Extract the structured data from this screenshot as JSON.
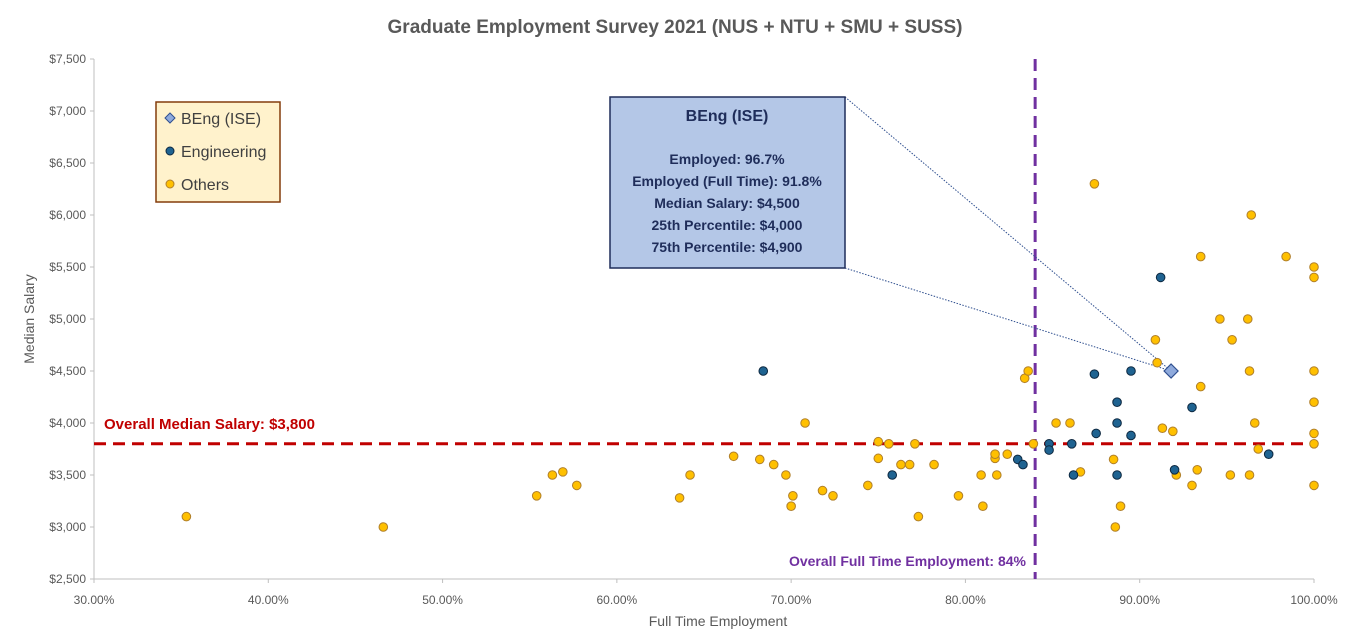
{
  "chart_data": {
    "type": "scatter",
    "title": "Graduate Employment Survey 2021 (NUS + NTU + SMU + SUSS)",
    "xlabel": "Full Time Employment",
    "ylabel": "Median Salary",
    "xlim": [
      0.3,
      1.0
    ],
    "ylim": [
      2500,
      7500
    ],
    "x_ticks": [
      0.3,
      0.4,
      0.5,
      0.6,
      0.7,
      0.8,
      0.9,
      1.0
    ],
    "x_tick_labels": [
      "30.00%",
      "40.00%",
      "50.00%",
      "60.00%",
      "70.00%",
      "80.00%",
      "90.00%",
      "100.00%"
    ],
    "y_ticks": [
      2500,
      3000,
      3500,
      4000,
      4500,
      5000,
      5500,
      6000,
      6500,
      7000,
      7500
    ],
    "y_tick_labels": [
      "$2,500",
      "$3,000",
      "$3,500",
      "$4,000",
      "$4,500",
      "$5,000",
      "$5,500",
      "$6,000",
      "$6,500",
      "$7,000",
      "$7,500"
    ],
    "grid": false,
    "legend": {
      "position": "top-left",
      "entries": [
        "BEng (ISE)",
        "Engineering",
        "Others"
      ]
    },
    "series": [
      {
        "name": "BEng (ISE)",
        "marker": "diamond",
        "color": "#8faadc",
        "points": [
          [
            0.918,
            4500
          ]
        ]
      },
      {
        "name": "Engineering",
        "marker": "circle",
        "color": "#1f6391",
        "points": [
          [
            0.684,
            4500
          ],
          [
            0.758,
            3500
          ],
          [
            0.83,
            3650
          ],
          [
            0.833,
            3600
          ],
          [
            0.848,
            3800
          ],
          [
            0.848,
            3740
          ],
          [
            0.861,
            3800
          ],
          [
            0.862,
            3500
          ],
          [
            0.874,
            4470
          ],
          [
            0.875,
            3900
          ],
          [
            0.887,
            4200
          ],
          [
            0.887,
            4000
          ],
          [
            0.887,
            3500
          ],
          [
            0.895,
            4500
          ],
          [
            0.895,
            3880
          ],
          [
            0.912,
            5400
          ],
          [
            0.92,
            3550
          ],
          [
            0.93,
            4150
          ],
          [
            0.974,
            3700
          ]
        ]
      },
      {
        "name": "Others",
        "marker": "circle",
        "color": "#ffc000",
        "points": [
          [
            0.353,
            3100
          ],
          [
            0.466,
            3000
          ],
          [
            0.554,
            3300
          ],
          [
            0.563,
            3500
          ],
          [
            0.569,
            3530
          ],
          [
            0.577,
            3400
          ],
          [
            0.636,
            3280
          ],
          [
            0.642,
            3500
          ],
          [
            0.667,
            3680
          ],
          [
            0.682,
            3650
          ],
          [
            0.69,
            3600
          ],
          [
            0.697,
            3500
          ],
          [
            0.7,
            3200
          ],
          [
            0.701,
            3300
          ],
          [
            0.708,
            4000
          ],
          [
            0.718,
            3350
          ],
          [
            0.724,
            3300
          ],
          [
            0.744,
            3400
          ],
          [
            0.75,
            3820
          ],
          [
            0.75,
            3660
          ],
          [
            0.756,
            3800
          ],
          [
            0.763,
            3600
          ],
          [
            0.768,
            3600
          ],
          [
            0.771,
            3800
          ],
          [
            0.773,
            3100
          ],
          [
            0.782,
            3600
          ],
          [
            0.796,
            3300
          ],
          [
            0.809,
            3500
          ],
          [
            0.81,
            3200
          ],
          [
            0.817,
            3660
          ],
          [
            0.817,
            3700
          ],
          [
            0.818,
            3500
          ],
          [
            0.824,
            3700
          ],
          [
            0.834,
            4430
          ],
          [
            0.836,
            4500
          ],
          [
            0.839,
            3800
          ],
          [
            0.852,
            4000
          ],
          [
            0.86,
            4000
          ],
          [
            0.866,
            3530
          ],
          [
            0.874,
            6300
          ],
          [
            0.885,
            3650
          ],
          [
            0.886,
            3000
          ],
          [
            0.889,
            3200
          ],
          [
            0.909,
            4800
          ],
          [
            0.91,
            4580
          ],
          [
            0.913,
            3950
          ],
          [
            0.919,
            3920
          ],
          [
            0.921,
            3500
          ],
          [
            0.93,
            3400
          ],
          [
            0.933,
            3550
          ],
          [
            0.935,
            5600
          ],
          [
            0.935,
            4350
          ],
          [
            0.946,
            5000
          ],
          [
            0.952,
            3500
          ],
          [
            0.953,
            4800
          ],
          [
            0.962,
            5000
          ],
          [
            0.963,
            4500
          ],
          [
            0.963,
            3500
          ],
          [
            0.964,
            6000
          ],
          [
            0.966,
            4000
          ],
          [
            0.968,
            3750
          ],
          [
            0.984,
            5600
          ],
          [
            1.0,
            5500
          ],
          [
            1.0,
            5400
          ],
          [
            1.0,
            4500
          ],
          [
            1.0,
            4200
          ],
          [
            1.0,
            3900
          ],
          [
            1.0,
            3800
          ],
          [
            1.0,
            3400
          ]
        ]
      }
    ],
    "reference_lines": [
      {
        "axis": "y",
        "value": 3800,
        "label": "Overall Median Salary: $3,800",
        "color": "#c00000"
      },
      {
        "axis": "x",
        "value": 0.84,
        "label": "Overall Full Time Employment: 84%",
        "color": "#7030a0"
      }
    ],
    "callout": {
      "title": "BEng (ISE)",
      "lines": [
        "Employed: 96.7%",
        "Employed (Full Time): 91.8%",
        "Median Salary: $4,500",
        "25th Percentile: $4,000",
        "75th Percentile: $4,900"
      ],
      "target": [
        0.918,
        4500
      ]
    }
  }
}
